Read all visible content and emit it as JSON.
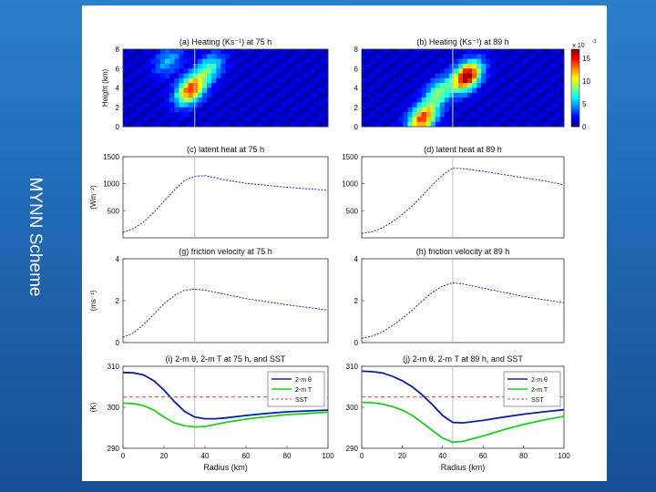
{
  "slide": {
    "title": "MYNN Scheme"
  },
  "colors": {
    "background": "#1f63ad",
    "blue_line": "#0b1fa8",
    "green_line": "#22cc22",
    "sst_line": "#c8463f",
    "vline": "#bbbbbb"
  },
  "chart_data": [
    {
      "type": "heatmap",
      "title": "(a) Heating (Ks⁻¹) at 75 h",
      "ylabel": "Height (km)",
      "yticks": [
        "0",
        "2",
        "4",
        "6",
        "8"
      ],
      "ylim": [
        0,
        8
      ],
      "xlim": [
        0,
        100
      ],
      "rmw": 35,
      "hotspots": [
        {
          "r": 33,
          "z": 3.8,
          "amp": 13
        },
        {
          "r": 42,
          "z": 6.0,
          "amp": 6
        },
        {
          "r": 22,
          "z": 6.8,
          "amp": 4
        }
      ]
    },
    {
      "type": "heatmap",
      "title": "(b) Heating (Ks⁻¹) at 89 h",
      "ylabel": "",
      "yticks": [
        "0",
        "2",
        "4",
        "6",
        "8"
      ],
      "ylim": [
        0,
        8
      ],
      "xlim": [
        0,
        100
      ],
      "rmw": 45,
      "hotspots": [
        {
          "r": 52,
          "z": 5.2,
          "amp": 16
        },
        {
          "r": 30,
          "z": 0.8,
          "amp": 13
        },
        {
          "r": 38,
          "z": 3.5,
          "amp": 7
        }
      ],
      "colorbar": {
        "label": "x 10",
        "exponent": "-3",
        "ticks": [
          "15",
          "10",
          "5",
          "0"
        ],
        "range": [
          0,
          17
        ]
      }
    },
    {
      "type": "line",
      "title": "(c) latent heat at 75 h",
      "ylabel": "(Wm⁻²)",
      "yticks": [
        "500",
        "1000",
        "1500"
      ],
      "ylim": [
        0,
        1500
      ],
      "xlim": [
        0,
        100
      ],
      "rmw": 35,
      "series": [
        {
          "name": "latent heat",
          "x": [
            0,
            5,
            10,
            15,
            20,
            25,
            30,
            35,
            40,
            45,
            50,
            60,
            70,
            80,
            90,
            100
          ],
          "y": [
            100,
            170,
            290,
            470,
            680,
            880,
            1060,
            1140,
            1150,
            1110,
            1070,
            1010,
            970,
            935,
            905,
            880
          ]
        }
      ]
    },
    {
      "type": "line",
      "title": "(d) latent heat at 89 h",
      "ylabel": "",
      "yticks": [
        "500",
        "1000",
        "1500"
      ],
      "ylim": [
        0,
        1500
      ],
      "xlim": [
        0,
        100
      ],
      "rmw": 45,
      "series": [
        {
          "name": "latent heat",
          "x": [
            0,
            5,
            10,
            15,
            20,
            25,
            30,
            35,
            40,
            45,
            50,
            60,
            70,
            80,
            90,
            100
          ],
          "y": [
            80,
            110,
            180,
            290,
            430,
            590,
            780,
            980,
            1160,
            1290,
            1280,
            1230,
            1170,
            1110,
            1055,
            980
          ]
        }
      ]
    },
    {
      "type": "line",
      "title": "(g) friction velocity at 75 h",
      "ylabel": "(ms⁻¹)",
      "yticks": [
        "0",
        "2",
        "4"
      ],
      "ylim": [
        0,
        4
      ],
      "xlim": [
        0,
        100
      ],
      "rmw": 35,
      "series": [
        {
          "name": "friction velocity",
          "x": [
            0,
            5,
            10,
            15,
            20,
            25,
            30,
            35,
            40,
            45,
            50,
            60,
            70,
            80,
            90,
            100
          ],
          "y": [
            0.25,
            0.45,
            0.85,
            1.35,
            1.85,
            2.25,
            2.5,
            2.55,
            2.5,
            2.4,
            2.3,
            2.1,
            1.95,
            1.8,
            1.68,
            1.55
          ]
        }
      ]
    },
    {
      "type": "line",
      "title": "(h) friction velocity at 89 h",
      "ylabel": "",
      "yticks": [
        "0",
        "2",
        "4"
      ],
      "ylim": [
        0,
        4
      ],
      "xlim": [
        0,
        100
      ],
      "rmw": 45,
      "series": [
        {
          "name": "friction velocity",
          "x": [
            0,
            5,
            10,
            15,
            20,
            25,
            30,
            35,
            40,
            45,
            50,
            60,
            70,
            80,
            90,
            100
          ],
          "y": [
            0.2,
            0.3,
            0.5,
            0.8,
            1.15,
            1.55,
            2.0,
            2.4,
            2.7,
            2.85,
            2.8,
            2.6,
            2.4,
            2.2,
            2.05,
            1.9
          ]
        }
      ]
    },
    {
      "type": "line",
      "title": "(i) 2-m θ, 2-m T at 75 h, and SST",
      "ylabel": "(K)",
      "xlabel": "Radius (km)",
      "yticks": [
        "290",
        "300",
        "310"
      ],
      "xticks": [
        "0",
        "20",
        "40",
        "60",
        "80",
        "100"
      ],
      "ylim": [
        290,
        310
      ],
      "xlim": [
        0,
        100
      ],
      "rmw": 35,
      "legend": [
        "2-m θ",
        "2-m T",
        "SST"
      ],
      "series": [
        {
          "name": "2-m θ",
          "x": [
            0,
            5,
            10,
            15,
            20,
            25,
            30,
            35,
            40,
            45,
            50,
            60,
            70,
            80,
            90,
            100
          ],
          "y": [
            308.5,
            308.4,
            307.9,
            306.5,
            304.2,
            301.4,
            299.0,
            297.6,
            297.2,
            297.2,
            297.4,
            298.0,
            298.5,
            298.9,
            299.1,
            299.3
          ]
        },
        {
          "name": "2-m T",
          "x": [
            0,
            5,
            10,
            15,
            20,
            25,
            30,
            35,
            40,
            45,
            50,
            60,
            70,
            80,
            90,
            100
          ],
          "y": [
            301.0,
            300.9,
            300.4,
            299.3,
            297.6,
            296.2,
            295.5,
            295.2,
            295.3,
            295.8,
            296.3,
            297.1,
            297.7,
            298.2,
            298.5,
            298.8
          ]
        },
        {
          "name": "SST",
          "x": [
            0,
            100
          ],
          "y": [
            302.5,
            302.5
          ]
        }
      ]
    },
    {
      "type": "line",
      "title": "(j) 2-m θ, 2-m T at 89 h, and SST",
      "ylabel": "",
      "xlabel": "Radius (km)",
      "yticks": [
        "290",
        "300",
        "310"
      ],
      "xticks": [
        "0",
        "20",
        "40",
        "60",
        "80",
        "100"
      ],
      "ylim": [
        290,
        310
      ],
      "xlim": [
        0,
        100
      ],
      "rmw": 45,
      "legend": [
        "2-m θ",
        "2-m T",
        "SST"
      ],
      "series": [
        {
          "name": "2-m θ",
          "x": [
            0,
            5,
            10,
            15,
            20,
            25,
            30,
            35,
            40,
            45,
            50,
            60,
            70,
            80,
            90,
            100
          ],
          "y": [
            308.8,
            308.7,
            308.4,
            307.6,
            306.5,
            305.0,
            303.0,
            300.6,
            298.0,
            296.3,
            296.2,
            296.8,
            297.6,
            298.3,
            298.9,
            299.4
          ]
        },
        {
          "name": "2-m T",
          "x": [
            0,
            5,
            10,
            15,
            20,
            25,
            30,
            35,
            40,
            45,
            50,
            60,
            70,
            80,
            90,
            100
          ],
          "y": [
            301.2,
            301.1,
            300.8,
            300.2,
            299.3,
            298.0,
            296.2,
            294.3,
            292.5,
            291.5,
            291.7,
            293.0,
            294.5,
            295.8,
            296.9,
            297.8
          ]
        },
        {
          "name": "SST",
          "x": [
            0,
            100
          ],
          "y": [
            302.5,
            302.5
          ]
        }
      ]
    }
  ]
}
